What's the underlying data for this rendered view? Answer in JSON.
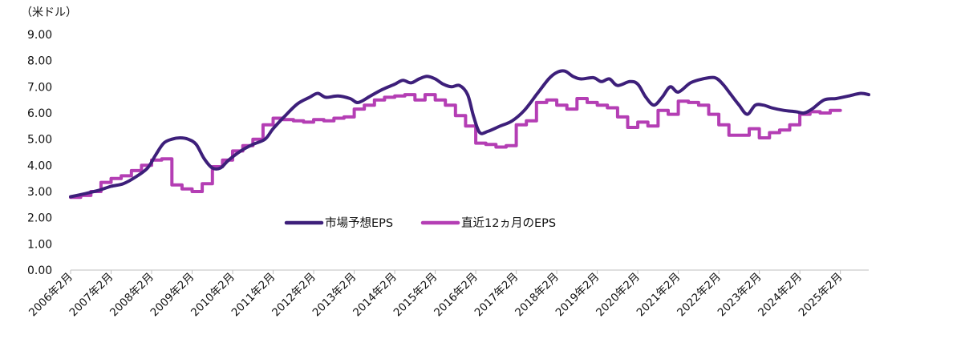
{
  "chart_data": {
    "type": "line",
    "unit_label": "（米ドル）",
    "ylim": [
      0,
      9
    ],
    "yticks": [
      "0.00",
      "1.00",
      "2.00",
      "3.00",
      "4.00",
      "5.00",
      "6.00",
      "7.00",
      "8.00",
      "9.00"
    ],
    "categories": [
      "2006年2月",
      "2007年2月",
      "2008年2月",
      "2009年2月",
      "2010年2月",
      "2011年2月",
      "2012年2月",
      "2013年2月",
      "2014年2月",
      "2015年2月",
      "2016年2月",
      "2017年2月",
      "2018年2月",
      "2019年2月",
      "2020年2月",
      "2021年2月",
      "2022年2月",
      "2023年2月",
      "2024年2月",
      "2025年2月"
    ],
    "x_range": [
      2006.0,
      2025.7
    ],
    "grid": false,
    "legend": "center",
    "series": [
      {
        "name": "市場予想EPS",
        "color": "#3d1f7a",
        "style": "smooth",
        "points": [
          [
            2006.0,
            2.8
          ],
          [
            2006.3,
            2.9
          ],
          [
            2006.7,
            3.05
          ],
          [
            2007.0,
            3.2
          ],
          [
            2007.3,
            3.3
          ],
          [
            2007.6,
            3.55
          ],
          [
            2007.9,
            3.9
          ],
          [
            2008.1,
            4.4
          ],
          [
            2008.3,
            4.85
          ],
          [
            2008.5,
            5.0
          ],
          [
            2008.7,
            5.05
          ],
          [
            2008.9,
            5.0
          ],
          [
            2009.1,
            4.8
          ],
          [
            2009.3,
            4.25
          ],
          [
            2009.5,
            3.9
          ],
          [
            2009.7,
            3.9
          ],
          [
            2009.9,
            4.2
          ],
          [
            2010.2,
            4.55
          ],
          [
            2010.5,
            4.8
          ],
          [
            2010.8,
            5.0
          ],
          [
            2011.0,
            5.4
          ],
          [
            2011.3,
            5.9
          ],
          [
            2011.6,
            6.35
          ],
          [
            2011.9,
            6.6
          ],
          [
            2012.1,
            6.75
          ],
          [
            2012.3,
            6.6
          ],
          [
            2012.6,
            6.65
          ],
          [
            2012.9,
            6.55
          ],
          [
            2013.1,
            6.4
          ],
          [
            2013.4,
            6.65
          ],
          [
            2013.7,
            6.9
          ],
          [
            2014.0,
            7.1
          ],
          [
            2014.2,
            7.25
          ],
          [
            2014.4,
            7.15
          ],
          [
            2014.6,
            7.3
          ],
          [
            2014.8,
            7.4
          ],
          [
            2015.0,
            7.3
          ],
          [
            2015.2,
            7.1
          ],
          [
            2015.4,
            7.0
          ],
          [
            2015.6,
            7.05
          ],
          [
            2015.8,
            6.7
          ],
          [
            2015.95,
            5.85
          ],
          [
            2016.1,
            5.25
          ],
          [
            2016.3,
            5.3
          ],
          [
            2016.6,
            5.5
          ],
          [
            2016.9,
            5.7
          ],
          [
            2017.2,
            6.1
          ],
          [
            2017.5,
            6.7
          ],
          [
            2017.8,
            7.3
          ],
          [
            2018.0,
            7.55
          ],
          [
            2018.2,
            7.6
          ],
          [
            2018.4,
            7.4
          ],
          [
            2018.6,
            7.3
          ],
          [
            2018.9,
            7.35
          ],
          [
            2019.1,
            7.2
          ],
          [
            2019.3,
            7.3
          ],
          [
            2019.5,
            7.05
          ],
          [
            2019.8,
            7.2
          ],
          [
            2020.0,
            7.1
          ],
          [
            2020.2,
            6.6
          ],
          [
            2020.4,
            6.3
          ],
          [
            2020.6,
            6.6
          ],
          [
            2020.8,
            7.0
          ],
          [
            2021.0,
            6.8
          ],
          [
            2021.3,
            7.15
          ],
          [
            2021.6,
            7.3
          ],
          [
            2021.9,
            7.35
          ],
          [
            2022.1,
            7.1
          ],
          [
            2022.3,
            6.7
          ],
          [
            2022.5,
            6.3
          ],
          [
            2022.7,
            5.95
          ],
          [
            2022.9,
            6.3
          ],
          [
            2023.1,
            6.3
          ],
          [
            2023.3,
            6.2
          ],
          [
            2023.6,
            6.1
          ],
          [
            2023.9,
            6.05
          ],
          [
            2024.1,
            6.0
          ],
          [
            2024.3,
            6.15
          ],
          [
            2024.6,
            6.5
          ],
          [
            2024.9,
            6.55
          ],
          [
            2025.2,
            6.65
          ],
          [
            2025.5,
            6.75
          ],
          [
            2025.7,
            6.7
          ]
        ]
      },
      {
        "name": "直近12ヵ月のEPS",
        "color": "#b43eb4",
        "style": "step",
        "points": [
          [
            2006.0,
            2.78
          ],
          [
            2006.25,
            2.85
          ],
          [
            2006.5,
            3.0
          ],
          [
            2006.75,
            3.35
          ],
          [
            2007.0,
            3.5
          ],
          [
            2007.25,
            3.6
          ],
          [
            2007.5,
            3.8
          ],
          [
            2007.75,
            4.0
          ],
          [
            2008.0,
            4.2
          ],
          [
            2008.25,
            4.25
          ],
          [
            2008.5,
            3.25
          ],
          [
            2008.75,
            3.1
          ],
          [
            2009.0,
            3.0
          ],
          [
            2009.25,
            3.3
          ],
          [
            2009.5,
            3.95
          ],
          [
            2009.75,
            4.2
          ],
          [
            2010.0,
            4.55
          ],
          [
            2010.25,
            4.75
          ],
          [
            2010.5,
            5.0
          ],
          [
            2010.75,
            5.55
          ],
          [
            2011.0,
            5.8
          ],
          [
            2011.25,
            5.75
          ],
          [
            2011.5,
            5.7
          ],
          [
            2011.75,
            5.65
          ],
          [
            2012.0,
            5.75
          ],
          [
            2012.25,
            5.7
          ],
          [
            2012.5,
            5.8
          ],
          [
            2012.75,
            5.85
          ],
          [
            2013.0,
            6.15
          ],
          [
            2013.25,
            6.3
          ],
          [
            2013.5,
            6.5
          ],
          [
            2013.75,
            6.6
          ],
          [
            2014.0,
            6.65
          ],
          [
            2014.25,
            6.7
          ],
          [
            2014.5,
            6.5
          ],
          [
            2014.75,
            6.7
          ],
          [
            2015.0,
            6.5
          ],
          [
            2015.25,
            6.3
          ],
          [
            2015.5,
            5.9
          ],
          [
            2015.75,
            5.5
          ],
          [
            2016.0,
            4.85
          ],
          [
            2016.25,
            4.8
          ],
          [
            2016.5,
            4.7
          ],
          [
            2016.75,
            4.75
          ],
          [
            2017.0,
            5.55
          ],
          [
            2017.25,
            5.7
          ],
          [
            2017.5,
            6.4
          ],
          [
            2017.75,
            6.5
          ],
          [
            2018.0,
            6.3
          ],
          [
            2018.25,
            6.15
          ],
          [
            2018.5,
            6.55
          ],
          [
            2018.75,
            6.4
          ],
          [
            2019.0,
            6.3
          ],
          [
            2019.25,
            6.2
          ],
          [
            2019.5,
            5.85
          ],
          [
            2019.75,
            5.45
          ],
          [
            2020.0,
            5.65
          ],
          [
            2020.25,
            5.5
          ],
          [
            2020.5,
            6.1
          ],
          [
            2020.75,
            5.95
          ],
          [
            2021.0,
            6.45
          ],
          [
            2021.25,
            6.4
          ],
          [
            2021.5,
            6.3
          ],
          [
            2021.75,
            5.95
          ],
          [
            2022.0,
            5.55
          ],
          [
            2022.25,
            5.15
          ],
          [
            2022.5,
            5.15
          ],
          [
            2022.75,
            5.4
          ],
          [
            2023.0,
            5.05
          ],
          [
            2023.25,
            5.25
          ],
          [
            2023.5,
            5.35
          ],
          [
            2023.75,
            5.55
          ],
          [
            2024.0,
            5.95
          ],
          [
            2024.25,
            6.05
          ],
          [
            2024.5,
            6.0
          ],
          [
            2024.75,
            6.1
          ]
        ]
      }
    ]
  }
}
